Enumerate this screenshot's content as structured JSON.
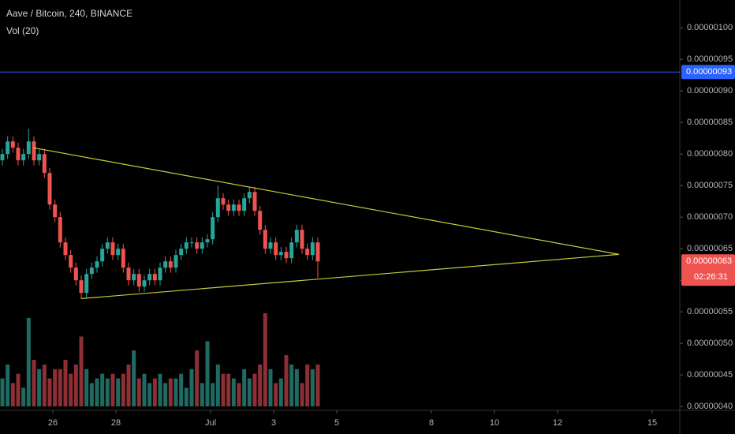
{
  "chart_data": {
    "type": "candlestick",
    "title": "Aave / Bitcoin, 240, BINANCE",
    "indicator": "Vol (20)",
    "up_color": "#26a69a",
    "down_color": "#ef5350",
    "volume_up_color": "#1f6b64",
    "volume_down_color": "#8e2f35",
    "x": [
      24.4,
      24.567,
      24.733,
      24.9,
      25.067,
      25.233,
      25.4,
      25.567,
      25.733,
      25.9,
      26.067,
      26.233,
      26.4,
      26.567,
      26.733,
      26.9,
      27.067,
      27.233,
      27.4,
      27.567,
      27.733,
      27.9,
      28.067,
      28.233,
      28.4,
      28.567,
      28.733,
      28.9,
      29.067,
      29.233,
      29.4,
      29.567,
      29.733,
      29.9,
      30.067,
      30.233,
      30.4,
      30.567,
      30.733,
      30.9,
      31.067,
      31.233,
      31.4,
      31.567,
      31.733,
      31.9,
      32.067,
      32.233,
      32.4,
      32.567,
      32.733,
      32.9,
      33.067,
      33.233,
      33.4,
      33.567,
      33.733,
      33.9,
      34.067,
      34.233,
      34.4
    ],
    "open": [
      7.9e-07,
      8e-07,
      8.2e-07,
      8.1e-07,
      7.9e-07,
      8e-07,
      8.2e-07,
      7.9e-07,
      8e-07,
      7.7e-07,
      7.2e-07,
      7e-07,
      6.6e-07,
      6.4e-07,
      6.2e-07,
      6e-07,
      5.8e-07,
      6.1e-07,
      6.2e-07,
      6.3e-07,
      6.5e-07,
      6.6e-07,
      6.4e-07,
      6.5e-07,
      6.2e-07,
      6e-07,
      6.1e-07,
      5.9e-07,
      6e-07,
      6.1e-07,
      6e-07,
      6.2e-07,
      6.3e-07,
      6.2e-07,
      6.4e-07,
      6.5e-07,
      6.6e-07,
      6.6e-07,
      6.5e-07,
      6.6e-07,
      6.65e-07,
      7e-07,
      7.3e-07,
      7.2e-07,
      7.1e-07,
      7.2e-07,
      7.1e-07,
      7.3e-07,
      7.4e-07,
      7.1e-07,
      6.8e-07,
      6.5e-07,
      6.6e-07,
      6.4e-07,
      6.45e-07,
      6.35e-07,
      6.6e-07,
      6.8e-07,
      6.5e-07,
      6.4e-07,
      6.6e-07
    ],
    "high": [
      8.08e-07,
      8.28e-07,
      8.28e-07,
      8.18e-07,
      8.08e-07,
      8.4e-07,
      8.28e-07,
      8.08e-07,
      8.08e-07,
      7.78e-07,
      7.28e-07,
      7.08e-07,
      6.68e-07,
      6.48e-07,
      6.28e-07,
      6.08e-07,
      6.18e-07,
      6.28e-07,
      6.38e-07,
      6.58e-07,
      6.68e-07,
      6.68e-07,
      6.58e-07,
      6.58e-07,
      6.28e-07,
      6.18e-07,
      6.18e-07,
      6.08e-07,
      6.18e-07,
      6.18e-07,
      6.28e-07,
      6.38e-07,
      6.38e-07,
      6.48e-07,
      6.58e-07,
      6.68e-07,
      6.68e-07,
      6.68e-07,
      6.68e-07,
      6.73e-07,
      7.08e-07,
      7.5e-07,
      7.38e-07,
      7.28e-07,
      7.28e-07,
      7.28e-07,
      7.38e-07,
      7.48e-07,
      7.48e-07,
      7.18e-07,
      6.88e-07,
      6.68e-07,
      6.68e-07,
      6.53e-07,
      6.53e-07,
      6.68e-07,
      6.88e-07,
      6.88e-07,
      6.58e-07,
      6.68e-07,
      6.68e-07
    ],
    "low": [
      7.82e-07,
      7.92e-07,
      8.02e-07,
      7.82e-07,
      7.82e-07,
      7.92e-07,
      7.82e-07,
      7.82e-07,
      7.62e-07,
      7.12e-07,
      6.92e-07,
      6.52e-07,
      6.32e-07,
      6.12e-07,
      5.92e-07,
      5.7e-07,
      5.72e-07,
      6.02e-07,
      6.12e-07,
      6.22e-07,
      6.42e-07,
      6.32e-07,
      6.32e-07,
      6.12e-07,
      5.92e-07,
      5.92e-07,
      5.82e-07,
      5.82e-07,
      5.92e-07,
      5.92e-07,
      5.92e-07,
      6.12e-07,
      6.12e-07,
      6.12e-07,
      6.32e-07,
      6.42e-07,
      6.52e-07,
      6.42e-07,
      6.42e-07,
      6.52e-07,
      6.57e-07,
      6.92e-07,
      7.12e-07,
      7.02e-07,
      7.02e-07,
      7.02e-07,
      7.02e-07,
      7.22e-07,
      7.02e-07,
      6.72e-07,
      6.42e-07,
      6.42e-07,
      6.32e-07,
      6.32e-07,
      6.27e-07,
      6.27e-07,
      6.52e-07,
      6.42e-07,
      6.32e-07,
      6.32e-07,
      6.04e-07
    ],
    "close": [
      8e-07,
      8.2e-07,
      8.1e-07,
      7.9e-07,
      8e-07,
      8.2e-07,
      7.9e-07,
      8e-07,
      7.7e-07,
      7.2e-07,
      7e-07,
      6.6e-07,
      6.4e-07,
      6.2e-07,
      6e-07,
      5.8e-07,
      6.1e-07,
      6.2e-07,
      6.3e-07,
      6.5e-07,
      6.6e-07,
      6.4e-07,
      6.5e-07,
      6.2e-07,
      6e-07,
      6.1e-07,
      5.9e-07,
      6e-07,
      6.1e-07,
      6e-07,
      6.2e-07,
      6.3e-07,
      6.2e-07,
      6.4e-07,
      6.5e-07,
      6.6e-07,
      6.6e-07,
      6.5e-07,
      6.6e-07,
      6.65e-07,
      7e-07,
      7.3e-07,
      7.2e-07,
      7.1e-07,
      7.2e-07,
      7.1e-07,
      7.3e-07,
      7.4e-07,
      7.1e-07,
      6.8e-07,
      6.5e-07,
      6.6e-07,
      6.4e-07,
      6.45e-07,
      6.35e-07,
      6.6e-07,
      6.8e-07,
      6.5e-07,
      6.4e-07,
      6.6e-07,
      6.3e-07
    ],
    "volume": [
      30,
      45,
      25,
      35,
      20,
      95,
      50,
      40,
      45,
      30,
      40,
      40,
      50,
      35,
      45,
      75,
      40,
      25,
      30,
      35,
      30,
      35,
      30,
      35,
      45,
      60,
      30,
      35,
      25,
      30,
      35,
      25,
      30,
      30,
      35,
      20,
      40,
      60,
      25,
      70,
      25,
      45,
      35,
      35,
      30,
      25,
      40,
      30,
      35,
      45,
      100,
      40,
      25,
      30,
      55,
      45,
      40,
      25,
      45,
      40,
      45
    ],
    "xlim": [
      24.325,
      45.875
    ],
    "xticks": [
      {
        "value": 26,
        "label": "26"
      },
      {
        "value": 28,
        "label": "28"
      },
      {
        "value": 31,
        "label": "Jul"
      },
      {
        "value": 33,
        "label": "3"
      },
      {
        "value": 35,
        "label": "5"
      },
      {
        "value": 38,
        "label": "8"
      },
      {
        "value": 40,
        "label": "10"
      },
      {
        "value": 42,
        "label": "12"
      },
      {
        "value": 45,
        "label": "15"
      }
    ],
    "ylim": [
      3.94e-07,
      1.044e-06
    ],
    "yticks": [
      {
        "value": 1e-06,
        "label": "0.00000100"
      },
      {
        "value": 9.5e-07,
        "label": "0.00000095"
      },
      {
        "value": 9e-07,
        "label": "0.00000090"
      },
      {
        "value": 8.5e-07,
        "label": "0.00000085"
      },
      {
        "value": 8e-07,
        "label": "0.00000080"
      },
      {
        "value": 7.5e-07,
        "label": "0.00000075"
      },
      {
        "value": 7e-07,
        "label": "0.00000070"
      },
      {
        "value": 6.5e-07,
        "label": "0.00000065"
      },
      {
        "value": 6e-07,
        "label": "0.00000060"
      },
      {
        "value": 5.5e-07,
        "label": "0.00000055"
      },
      {
        "value": 5e-07,
        "label": "0.00000050"
      },
      {
        "value": 4.5e-07,
        "label": "0.00000045"
      },
      {
        "value": 4e-07,
        "label": "0.00000040"
      }
    ],
    "hline": {
      "value": 9.3e-07,
      "label": "0.00000093",
      "color": "#2962ff"
    },
    "last_price": {
      "value": 6.3e-07,
      "label": "0.00000063",
      "countdown": "02:26:31",
      "color": "#ef5350"
    },
    "trend_color": "#c9c93b",
    "trend_lines": [
      {
        "x": [
          25.375,
          43.95
        ],
        "y": [
          8.1e-07,
          6.41e-07
        ]
      },
      {
        "x": [
          26.9,
          43.95
        ],
        "y": [
          5.71e-07,
          6.41e-07
        ]
      }
    ]
  }
}
